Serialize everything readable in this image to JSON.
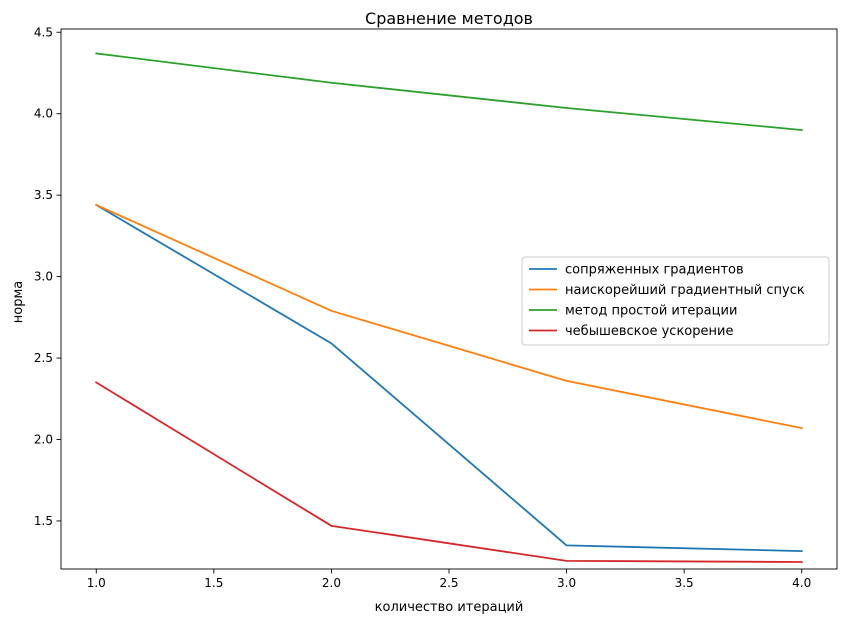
{
  "chart_data": {
    "type": "line",
    "title": "Сравнение методов",
    "xlabel": "количество итераций",
    "ylabel": "норма",
    "x": [
      1.0,
      2.0,
      3.0,
      4.0
    ],
    "xlim": [
      0.85,
      4.15
    ],
    "ylim": [
      1.205,
      4.52
    ],
    "xticks": [
      1.0,
      1.5,
      2.0,
      2.5,
      3.0,
      3.5,
      4.0
    ],
    "xtick_labels": [
      "1.0",
      "1.5",
      "2.0",
      "2.5",
      "3.0",
      "3.5",
      "4.0"
    ],
    "yticks": [
      1.5,
      2.0,
      2.5,
      3.0,
      3.5,
      4.0,
      4.5
    ],
    "ytick_labels": [
      "1.5",
      "2.0",
      "2.5",
      "3.0",
      "3.5",
      "4.0",
      "4.5"
    ],
    "grid": false,
    "legend_position": "center-right",
    "series": [
      {
        "name": "сопряженных градиентов",
        "color": "#1f77b4",
        "values": [
          3.44,
          2.59,
          1.35,
          1.315
        ]
      },
      {
        "name": "наискорейший градиентный спуск",
        "color": "#ff7f0e",
        "values": [
          3.44,
          2.79,
          2.36,
          2.07
        ]
      },
      {
        "name": "метод простой итерации",
        "color": "#2ca02c",
        "values": [
          4.37,
          4.19,
          4.035,
          3.9
        ]
      },
      {
        "name": "чебышевское ускорение",
        "color": "#d62728",
        "values": [
          2.35,
          1.47,
          1.255,
          1.248
        ]
      }
    ]
  }
}
